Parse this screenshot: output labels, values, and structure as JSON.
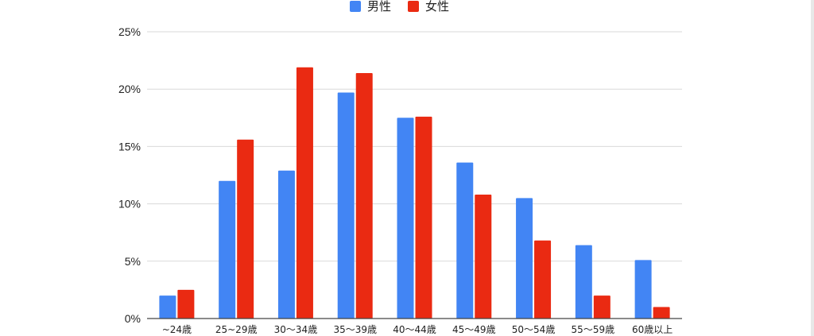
{
  "colors": {
    "series1": "#4285f4",
    "series2": "#ea2a12",
    "grid": "#d9d9d9",
    "axis": "#444444",
    "text": "#222222"
  },
  "chart_data": {
    "type": "bar",
    "title": "",
    "xlabel": "",
    "ylabel": "",
    "categories": [
      "~24歳",
      "25~29歳",
      "30〜34歳",
      "35〜39歳",
      "40〜44歳",
      "45〜49歳",
      "50〜54歳",
      "55〜59歳",
      "60歳以上"
    ],
    "series": [
      {
        "name": "男性",
        "color": "#4285f4",
        "values": [
          2.0,
          12.0,
          12.9,
          19.7,
          17.5,
          13.6,
          10.5,
          6.4,
          5.1
        ]
      },
      {
        "name": "女性",
        "color": "#ea2a12",
        "values": [
          2.5,
          15.6,
          21.9,
          21.4,
          17.6,
          10.8,
          6.8,
          2.0,
          1.0
        ]
      }
    ],
    "ylim": [
      0,
      25
    ],
    "yticks": [
      0,
      5,
      10,
      15,
      20,
      25
    ],
    "ytick_labels": [
      "0%",
      "5%",
      "10%",
      "15%",
      "20%",
      "25%"
    ],
    "grid": true,
    "legend_position": "top-center"
  }
}
